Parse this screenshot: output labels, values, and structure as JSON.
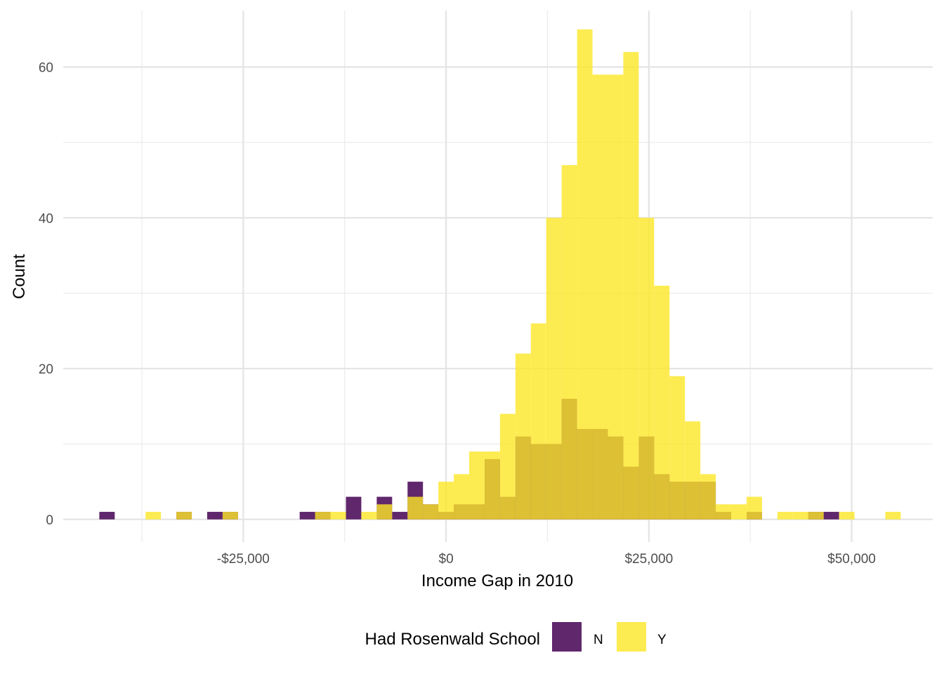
{
  "chart_data": {
    "type": "histogram",
    "title": "",
    "xlabel": "Income Gap in 2010",
    "ylabel": "Count",
    "bin_width": 1900,
    "x_tick_values": [
      -25000,
      0,
      25000,
      50000
    ],
    "x_tick_labels": [
      "-$25,000",
      "$0",
      "$25,000",
      "$50,000"
    ],
    "y_ticks": [
      0,
      20,
      40,
      60
    ],
    "xlim": [
      -47200,
      60000
    ],
    "ylim": [
      -3,
      67.5
    ],
    "grid": true,
    "legend": {
      "title": "Had Rosenwald School",
      "position": "bottom",
      "entries": [
        "N",
        "Y"
      ]
    },
    "series": [
      {
        "name": "N",
        "color": "#440154",
        "opacity": 0.85,
        "bins": [
          {
            "x": -41800,
            "count": 1
          },
          {
            "x": -32300,
            "count": 1
          },
          {
            "x": -28500,
            "count": 1
          },
          {
            "x": -26600,
            "count": 1
          },
          {
            "x": -17100,
            "count": 1
          },
          {
            "x": -15200,
            "count": 1
          },
          {
            "x": -11400,
            "count": 3
          },
          {
            "x": -7600,
            "count": 3
          },
          {
            "x": -5700,
            "count": 1
          },
          {
            "x": -3800,
            "count": 5
          },
          {
            "x": -1900,
            "count": 2
          },
          {
            "x": 0,
            "count": 1
          },
          {
            "x": 1900,
            "count": 2
          },
          {
            "x": 3800,
            "count": 2
          },
          {
            "x": 5700,
            "count": 8
          },
          {
            "x": 7600,
            "count": 3
          },
          {
            "x": 9500,
            "count": 11
          },
          {
            "x": 11400,
            "count": 10
          },
          {
            "x": 13300,
            "count": 10
          },
          {
            "x": 15200,
            "count": 16
          },
          {
            "x": 17100,
            "count": 12
          },
          {
            "x": 19000,
            "count": 12
          },
          {
            "x": 20900,
            "count": 11
          },
          {
            "x": 22800,
            "count": 7
          },
          {
            "x": 24700,
            "count": 11
          },
          {
            "x": 26600,
            "count": 6
          },
          {
            "x": 28500,
            "count": 5
          },
          {
            "x": 30400,
            "count": 5
          },
          {
            "x": 32300,
            "count": 5
          },
          {
            "x": 34200,
            "count": 1
          },
          {
            "x": 38000,
            "count": 1
          },
          {
            "x": 45600,
            "count": 1
          },
          {
            "x": 47500,
            "count": 1
          }
        ]
      },
      {
        "name": "Y",
        "color": "#FDE725",
        "opacity": 0.8,
        "bins": [
          {
            "x": -36100,
            "count": 1
          },
          {
            "x": -32300,
            "count": 1
          },
          {
            "x": -26600,
            "count": 1
          },
          {
            "x": -15200,
            "count": 1
          },
          {
            "x": -13300,
            "count": 1
          },
          {
            "x": -9500,
            "count": 1
          },
          {
            "x": -7600,
            "count": 2
          },
          {
            "x": -3800,
            "count": 3
          },
          {
            "x": -1900,
            "count": 2
          },
          {
            "x": 0,
            "count": 5
          },
          {
            "x": 1900,
            "count": 6
          },
          {
            "x": 3800,
            "count": 9
          },
          {
            "x": 5700,
            "count": 9
          },
          {
            "x": 7600,
            "count": 14
          },
          {
            "x": 9500,
            "count": 22
          },
          {
            "x": 11400,
            "count": 26
          },
          {
            "x": 13300,
            "count": 40
          },
          {
            "x": 15200,
            "count": 47
          },
          {
            "x": 17100,
            "count": 65
          },
          {
            "x": 19000,
            "count": 59
          },
          {
            "x": 20900,
            "count": 59
          },
          {
            "x": 22800,
            "count": 62
          },
          {
            "x": 24700,
            "count": 40
          },
          {
            "x": 26600,
            "count": 31
          },
          {
            "x": 28500,
            "count": 19
          },
          {
            "x": 30400,
            "count": 13
          },
          {
            "x": 32300,
            "count": 6
          },
          {
            "x": 34200,
            "count": 2
          },
          {
            "x": 36100,
            "count": 2
          },
          {
            "x": 38000,
            "count": 3
          },
          {
            "x": 41800,
            "count": 1
          },
          {
            "x": 43700,
            "count": 1
          },
          {
            "x": 45600,
            "count": 1
          },
          {
            "x": 49400,
            "count": 1
          },
          {
            "x": 55100,
            "count": 1
          }
        ]
      }
    ]
  }
}
